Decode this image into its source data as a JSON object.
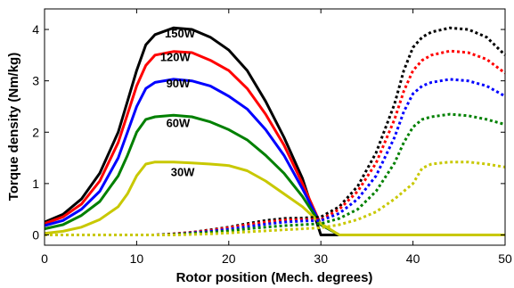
{
  "chart_data": {
    "type": "line",
    "title": "",
    "xlabel": "Rotor position (Mech. degrees)",
    "ylabel": "Torque density (Nm/kg)",
    "xlim": [
      0,
      50
    ],
    "ylim": [
      -0.2,
      4.4
    ],
    "xticks": [
      0,
      10,
      20,
      30,
      40,
      50
    ],
    "yticks": [
      0,
      1,
      2,
      3,
      4
    ],
    "grid": false,
    "legend": "none",
    "x": [
      0,
      2,
      4,
      6,
      8,
      9,
      10,
      11,
      12,
      14,
      16,
      18,
      20,
      22,
      24,
      26,
      28,
      30,
      32,
      34,
      36,
      38,
      39,
      40,
      41,
      42,
      44,
      46,
      48,
      50
    ],
    "series": [
      {
        "name": "150W",
        "color": "#000000",
        "style": "solid",
        "values": [
          0.25,
          0.4,
          0.7,
          1.2,
          2.0,
          2.6,
          3.2,
          3.7,
          3.9,
          4.03,
          4.0,
          3.85,
          3.6,
          3.2,
          2.6,
          1.9,
          1.1,
          0.0,
          0.0,
          0.0,
          0.0,
          0.0,
          0.0,
          0.0,
          0.0,
          0.0,
          0.0,
          0.0,
          0.0,
          0.0
        ]
      },
      {
        "name": "120W",
        "color": "#ff0000",
        "style": "solid",
        "values": [
          0.22,
          0.35,
          0.6,
          1.05,
          1.8,
          2.35,
          2.9,
          3.3,
          3.5,
          3.57,
          3.55,
          3.4,
          3.2,
          2.85,
          2.35,
          1.75,
          1.0,
          0.2,
          0.0,
          0.0,
          0.0,
          0.0,
          0.0,
          0.0,
          0.0,
          0.0,
          0.0,
          0.0,
          0.0,
          0.0
        ]
      },
      {
        "name": "90W",
        "color": "#0000ff",
        "style": "solid",
        "values": [
          0.18,
          0.28,
          0.5,
          0.85,
          1.5,
          2.0,
          2.5,
          2.85,
          2.97,
          3.03,
          3.0,
          2.9,
          2.7,
          2.45,
          2.05,
          1.55,
          0.9,
          0.2,
          0.0,
          0.0,
          0.0,
          0.0,
          0.0,
          0.0,
          0.0,
          0.0,
          0.0,
          0.0,
          0.0,
          0.0
        ]
      },
      {
        "name": "60W",
        "color": "#008000",
        "style": "solid",
        "values": [
          0.12,
          0.2,
          0.38,
          0.65,
          1.15,
          1.55,
          2.0,
          2.25,
          2.3,
          2.33,
          2.3,
          2.2,
          2.05,
          1.85,
          1.55,
          1.2,
          0.75,
          0.2,
          0.0,
          0.0,
          0.0,
          0.0,
          0.0,
          0.0,
          0.0,
          0.0,
          0.0,
          0.0,
          0.0,
          0.0
        ]
      },
      {
        "name": "30W",
        "color": "#c8c800",
        "style": "solid",
        "values": [
          0.03,
          0.07,
          0.15,
          0.3,
          0.55,
          0.8,
          1.15,
          1.38,
          1.42,
          1.42,
          1.4,
          1.38,
          1.35,
          1.25,
          1.05,
          0.8,
          0.55,
          0.22,
          0.0,
          0.0,
          0.0,
          0.0,
          0.0,
          0.0,
          0.0,
          0.0,
          0.0,
          0.0,
          0.0,
          0.0
        ]
      },
      {
        "name": "150W",
        "color": "#000000",
        "style": "dotted",
        "values": [
          0.0,
          0.0,
          0.0,
          0.0,
          0.0,
          0.0,
          0.0,
          0.0,
          0.0,
          0.02,
          0.05,
          0.1,
          0.15,
          0.22,
          0.28,
          0.32,
          0.33,
          0.35,
          0.55,
          0.95,
          1.6,
          2.55,
          3.2,
          3.65,
          3.85,
          3.95,
          4.03,
          4.0,
          3.85,
          3.5
        ]
      },
      {
        "name": "120W",
        "color": "#ff0000",
        "style": "dotted",
        "values": [
          0.0,
          0.0,
          0.0,
          0.0,
          0.0,
          0.0,
          0.0,
          0.0,
          0.0,
          0.02,
          0.05,
          0.09,
          0.14,
          0.2,
          0.25,
          0.29,
          0.3,
          0.3,
          0.5,
          0.85,
          1.4,
          2.25,
          2.8,
          3.2,
          3.4,
          3.5,
          3.58,
          3.55,
          3.42,
          3.15
        ]
      },
      {
        "name": "90W",
        "color": "#0000ff",
        "style": "dotted",
        "values": [
          0.0,
          0.0,
          0.0,
          0.0,
          0.0,
          0.0,
          0.0,
          0.0,
          0.0,
          0.01,
          0.04,
          0.07,
          0.11,
          0.16,
          0.21,
          0.25,
          0.27,
          0.28,
          0.42,
          0.7,
          1.15,
          1.9,
          2.4,
          2.75,
          2.9,
          2.97,
          3.03,
          3.0,
          2.9,
          2.7
        ]
      },
      {
        "name": "60W",
        "color": "#008000",
        "style": "dotted",
        "values": [
          0.0,
          0.0,
          0.0,
          0.0,
          0.0,
          0.0,
          0.0,
          0.0,
          0.0,
          0.01,
          0.03,
          0.05,
          0.08,
          0.12,
          0.15,
          0.18,
          0.2,
          0.22,
          0.32,
          0.5,
          0.85,
          1.4,
          1.8,
          2.1,
          2.25,
          2.3,
          2.35,
          2.32,
          2.25,
          2.15
        ]
      },
      {
        "name": "30W",
        "color": "#c8c800",
        "style": "dotted",
        "values": [
          0.0,
          0.0,
          0.0,
          0.0,
          0.0,
          0.0,
          0.0,
          0.0,
          0.0,
          0.0,
          0.01,
          0.02,
          0.04,
          0.06,
          0.08,
          0.1,
          0.12,
          0.14,
          0.2,
          0.3,
          0.45,
          0.7,
          0.85,
          1.0,
          1.3,
          1.38,
          1.42,
          1.42,
          1.38,
          1.32
        ]
      }
    ],
    "annotations": [
      {
        "text": "150W",
        "x": 14.7,
        "y": 3.93
      },
      {
        "text": "120W",
        "x": 14.2,
        "y": 3.47
      },
      {
        "text": "90W",
        "x": 14.5,
        "y": 2.96
      },
      {
        "text": "60W",
        "x": 14.5,
        "y": 2.19
      },
      {
        "text": "30W",
        "x": 15.0,
        "y": 1.23
      }
    ]
  }
}
